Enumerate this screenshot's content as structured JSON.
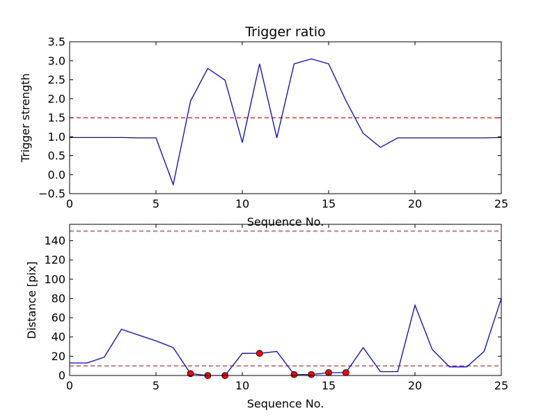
{
  "chart_data": [
    {
      "type": "line",
      "title": "Trigger ratio",
      "xlabel": "Sequence No.",
      "ylabel": "Trigger strength",
      "xlim": [
        0,
        25
      ],
      "ylim": [
        -0.5,
        3.5
      ],
      "xticks": [
        0,
        5,
        10,
        15,
        20,
        25
      ],
      "xtick_labels": [
        "0",
        "5",
        "10",
        "15",
        "20",
        "25"
      ],
      "yticks": [
        -0.5,
        0.0,
        0.5,
        1.0,
        1.5,
        2.0,
        2.5,
        3.0,
        3.5
      ],
      "ytick_labels": [
        "−0.5",
        "0.0",
        "0.5",
        "1.0",
        "1.5",
        "2.0",
        "2.5",
        "3.0",
        "3.5"
      ],
      "grid": false,
      "series": [
        {
          "type": "line",
          "color": "#0000ff",
          "x": [
            0,
            1,
            2,
            3,
            4,
            5,
            6,
            7,
            8,
            9,
            10,
            11,
            12,
            13,
            14,
            15,
            16,
            17,
            18,
            19,
            20,
            21,
            22,
            23,
            24,
            25
          ],
          "y": [
            0.98,
            0.98,
            0.98,
            0.98,
            0.97,
            0.97,
            -0.26,
            1.94,
            2.8,
            2.49,
            0.85,
            2.92,
            0.97,
            2.92,
            3.05,
            2.92,
            1.95,
            1.09,
            0.72,
            0.97,
            0.97,
            0.97,
            0.97,
            0.97,
            0.97,
            0.98
          ]
        }
      ],
      "hlines": [
        {
          "y": 1.5,
          "color": "#ff0000",
          "style": "dashed"
        }
      ]
    },
    {
      "type": "line",
      "title": "",
      "xlabel": "Sequence No.",
      "ylabel": "Distance [pix]",
      "xlim": [
        0,
        25
      ],
      "ylim": [
        0,
        157
      ],
      "xticks": [
        0,
        5,
        10,
        15,
        20,
        25
      ],
      "xtick_labels": [
        "0",
        "5",
        "10",
        "15",
        "20",
        "25"
      ],
      "yticks": [
        0,
        20,
        40,
        60,
        80,
        100,
        120,
        140
      ],
      "ytick_labels": [
        "0",
        "20",
        "40",
        "60",
        "80",
        "100",
        "120",
        "140"
      ],
      "grid": false,
      "series": [
        {
          "type": "line",
          "color": "#0000ff",
          "x": [
            0,
            1,
            2,
            3,
            4,
            5,
            6,
            7,
            8,
            9,
            10,
            11,
            12,
            13,
            14,
            15,
            16,
            17,
            18,
            19,
            20,
            21,
            22,
            23,
            24,
            25
          ],
          "y": [
            13,
            13,
            19,
            48,
            42,
            36,
            29,
            2,
            0,
            0,
            23,
            23,
            25,
            1,
            1,
            3,
            3,
            29,
            4,
            4,
            73,
            27,
            9,
            9,
            25,
            80
          ]
        },
        {
          "type": "scatter",
          "color": "#ff0000",
          "x": [
            7,
            8,
            9,
            11,
            13,
            14,
            15,
            16
          ],
          "y": [
            2,
            0,
            0,
            23,
            1,
            1,
            3,
            3
          ]
        }
      ],
      "hlines": [
        {
          "y": 10,
          "color": "#ff0000",
          "style": "dashed"
        },
        {
          "y": 150,
          "color": "#ff0000",
          "style": "dashed"
        }
      ]
    }
  ]
}
